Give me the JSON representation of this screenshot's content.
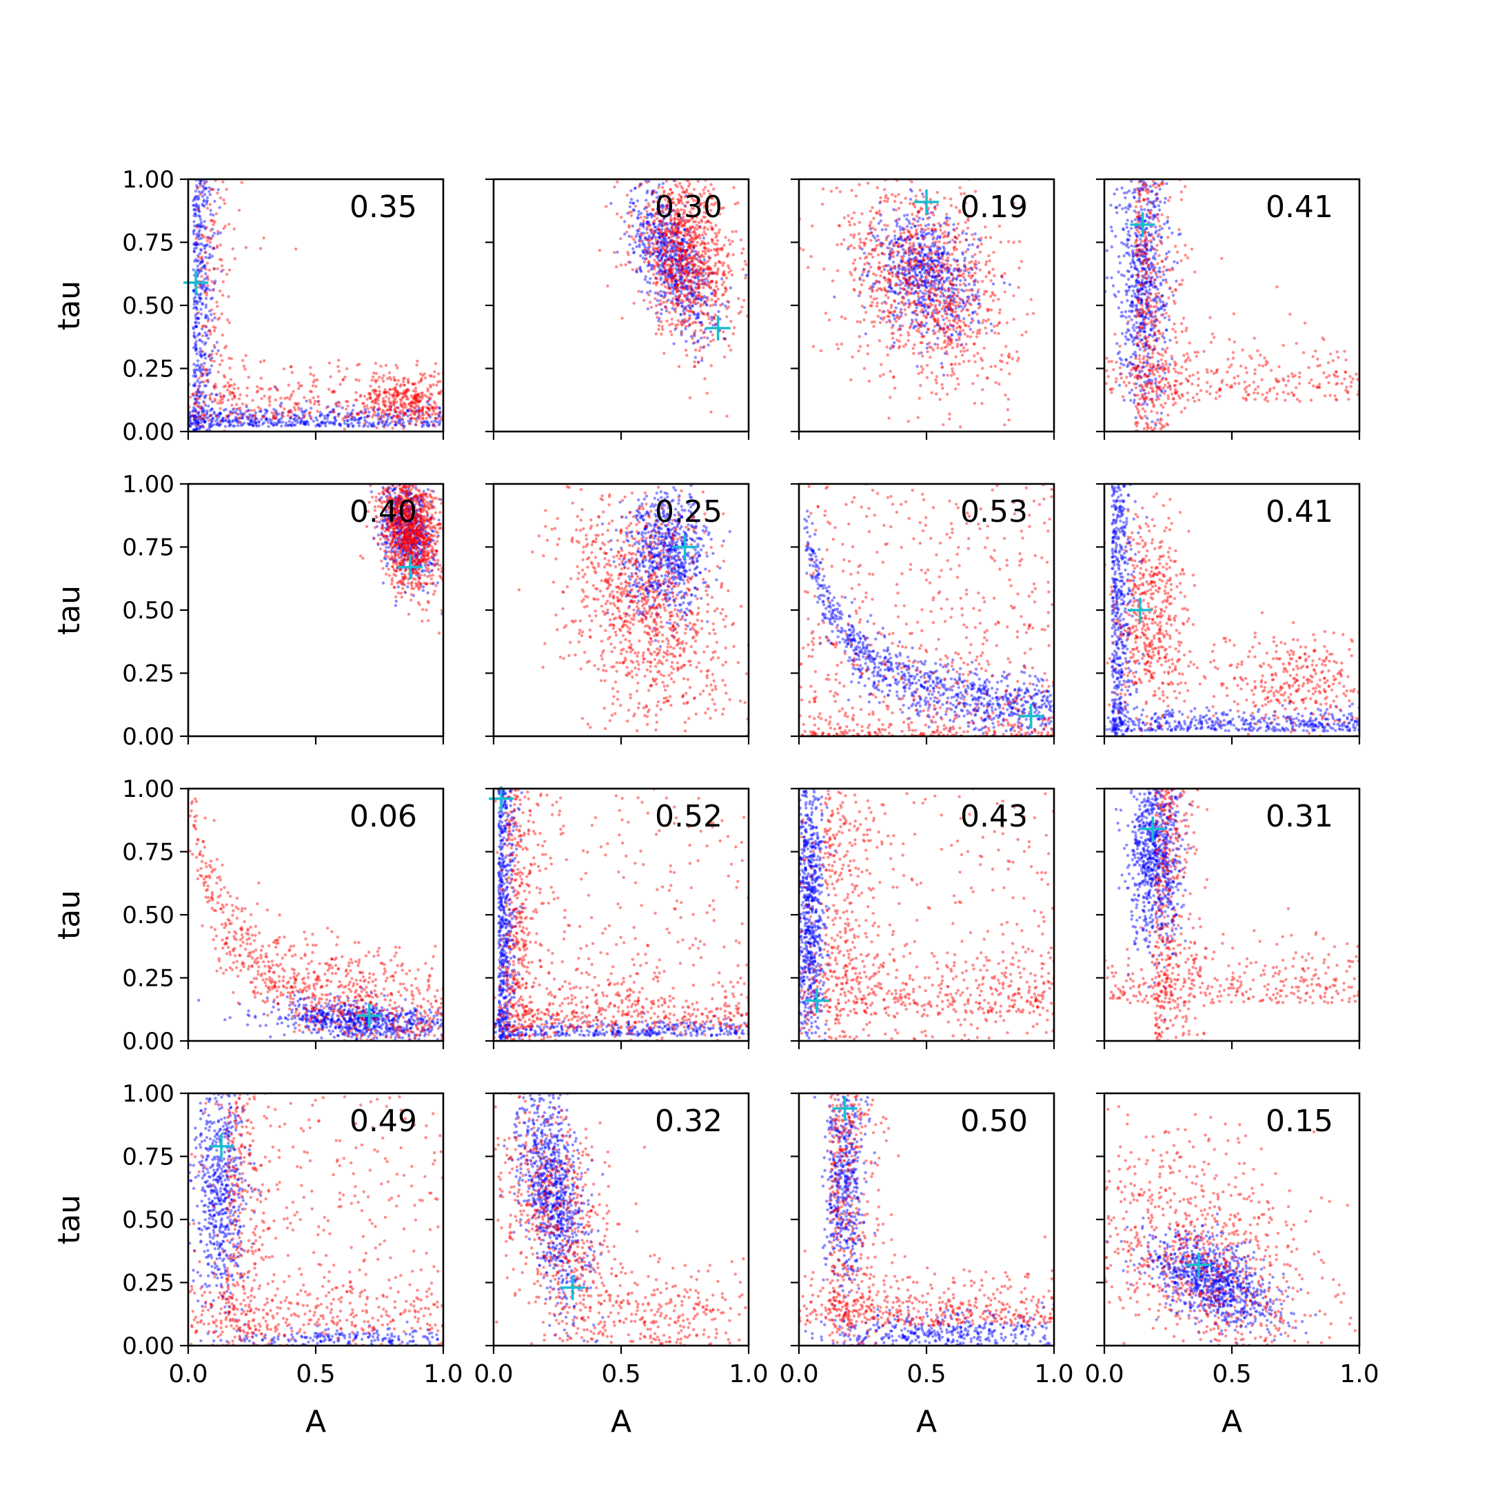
{
  "figure": {
    "x_tick_labels": [
      "0.0",
      "0.5",
      "1.0"
    ],
    "y_tick_labels": [
      "0.00",
      "0.25",
      "0.50",
      "0.75",
      "1.00"
    ]
  },
  "chart_data": [
    {
      "type": "scatter",
      "panel": 1,
      "annotation": "0.35",
      "xlabel": "",
      "ylabel": "tau",
      "xlim": [
        0,
        1
      ],
      "ylim": [
        0,
        1
      ],
      "marker": {
        "A": 0.03,
        "tau": 0.59
      },
      "distribution": "red: broad L-shape with cluster near A≈0.85, tau≈0.12; blue: tight L along axes"
    },
    {
      "type": "scatter",
      "panel": 2,
      "annotation": "0.30",
      "xlabel": "",
      "ylabel": "",
      "xlim": [
        0,
        1
      ],
      "ylim": [
        0,
        1
      ],
      "marker": {
        "A": 0.88,
        "tau": 0.41
      },
      "distribution": "red and blue: dense cluster around A≈0.75, tau≈0.7, upper right"
    },
    {
      "type": "scatter",
      "panel": 3,
      "annotation": "0.19",
      "xlabel": "",
      "ylabel": "",
      "xlim": [
        0,
        1
      ],
      "ylim": [
        0,
        1
      ],
      "marker": {
        "A": 0.5,
        "tau": 0.91
      },
      "distribution": "blue: blob around A≈0.5, tau≈0.62; red: wider spread"
    },
    {
      "type": "scatter",
      "panel": 4,
      "annotation": "0.41",
      "xlabel": "",
      "ylabel": "",
      "xlim": [
        0,
        1
      ],
      "ylim": [
        0,
        1
      ],
      "marker": {
        "A": 0.15,
        "tau": 0.82
      },
      "distribution": "blue: vertical band at A≈0.15; red: L-shape"
    },
    {
      "type": "scatter",
      "panel": 5,
      "annotation": "0.40",
      "xlabel": "",
      "ylabel": "tau",
      "xlim": [
        0,
        1
      ],
      "ylim": [
        0,
        1
      ],
      "marker": {
        "A": 0.87,
        "tau": 0.67
      },
      "distribution": "red and blue: dense cluster upper right around A≈0.85, tau≈0.8"
    },
    {
      "type": "scatter",
      "panel": 6,
      "annotation": "0.25",
      "xlabel": "",
      "ylabel": "",
      "xlim": [
        0,
        1
      ],
      "ylim": [
        0,
        1
      ],
      "marker": {
        "A": 0.75,
        "tau": 0.75
      },
      "distribution": "blue: blob around A≈0.68, tau≈0.72; red: broad spread"
    },
    {
      "type": "scatter",
      "panel": 7,
      "annotation": "0.53",
      "xlabel": "",
      "ylabel": "",
      "xlim": [
        0,
        1
      ],
      "ylim": [
        0,
        1
      ],
      "marker": {
        "A": 0.91,
        "tau": 0.08
      },
      "distribution": "blue: decaying curve from low A/high tau to high A/low tau; red: broad"
    },
    {
      "type": "scatter",
      "panel": 8,
      "annotation": "0.41",
      "xlabel": "",
      "ylabel": "",
      "xlim": [
        0,
        1
      ],
      "ylim": [
        0,
        1
      ],
      "marker": {
        "A": 0.14,
        "tau": 0.5
      },
      "distribution": "blue: L along axes; red: band near A≈0.15 plus cluster near A≈0.8, tau≈0.2"
    },
    {
      "type": "scatter",
      "panel": 9,
      "annotation": "0.06",
      "xlabel": "",
      "ylabel": "tau",
      "xlim": [
        0,
        1
      ],
      "ylim": [
        0,
        1
      ],
      "marker": {
        "A": 0.71,
        "tau": 0.1
      },
      "distribution": "blue: band along bottom A>0.45; red: L-shape"
    },
    {
      "type": "scatter",
      "panel": 10,
      "annotation": "0.52",
      "xlabel": "",
      "ylabel": "",
      "xlim": [
        0,
        1
      ],
      "ylim": [
        0,
        1
      ],
      "marker": {
        "A": 0.03,
        "tau": 0.96
      },
      "distribution": "blue and red: tight L along axes; red broad scatter"
    },
    {
      "type": "scatter",
      "panel": 11,
      "annotation": "0.43",
      "xlabel": "",
      "ylabel": "",
      "xlim": [
        0,
        1
      ],
      "ylim": [
        0,
        1
      ],
      "marker": {
        "A": 0.07,
        "tau": 0.16
      },
      "distribution": "blue: vertical band near A≈0.03; red: broad L"
    },
    {
      "type": "scatter",
      "panel": 12,
      "annotation": "0.31",
      "xlabel": "",
      "ylabel": "",
      "xlim": [
        0,
        1
      ],
      "ylim": [
        0,
        1
      ],
      "marker": {
        "A": 0.19,
        "tau": 0.84
      },
      "distribution": "blue: vertical band at A≈0.2; red: L with spread toward right"
    },
    {
      "type": "scatter",
      "panel": 13,
      "annotation": "0.49",
      "xlabel": "A",
      "ylabel": "tau",
      "xlim": [
        0,
        1
      ],
      "ylim": [
        0,
        1
      ],
      "marker": {
        "A": 0.13,
        "tau": 0.79
      },
      "distribution": "blue: vertical band A≈0.13 and bottom line; red: broad"
    },
    {
      "type": "scatter",
      "panel": 14,
      "annotation": "0.32",
      "xlabel": "A",
      "ylabel": "",
      "xlim": [
        0,
        1
      ],
      "ylim": [
        0,
        1
      ],
      "marker": {
        "A": 0.31,
        "tau": 0.23
      },
      "distribution": "blue: diagonal band A 0.1–0.35, tau 1.0–0.3; red: broad"
    },
    {
      "type": "scatter",
      "panel": 15,
      "annotation": "0.50",
      "xlabel": "A",
      "ylabel": "",
      "xlim": [
        0,
        1
      ],
      "ylim": [
        0,
        1
      ],
      "marker": {
        "A": 0.18,
        "tau": 0.94
      },
      "distribution": "blue: L along A≈0.18 and bottom; red: broad L"
    },
    {
      "type": "scatter",
      "panel": 16,
      "annotation": "0.15",
      "xlabel": "A",
      "ylabel": "",
      "xlim": [
        0,
        1
      ],
      "ylim": [
        0,
        1
      ],
      "marker": {
        "A": 0.37,
        "tau": 0.32
      },
      "distribution": "blue: diagonal decay centered A≈0.4, tau≈0.25; red: broad"
    }
  ]
}
